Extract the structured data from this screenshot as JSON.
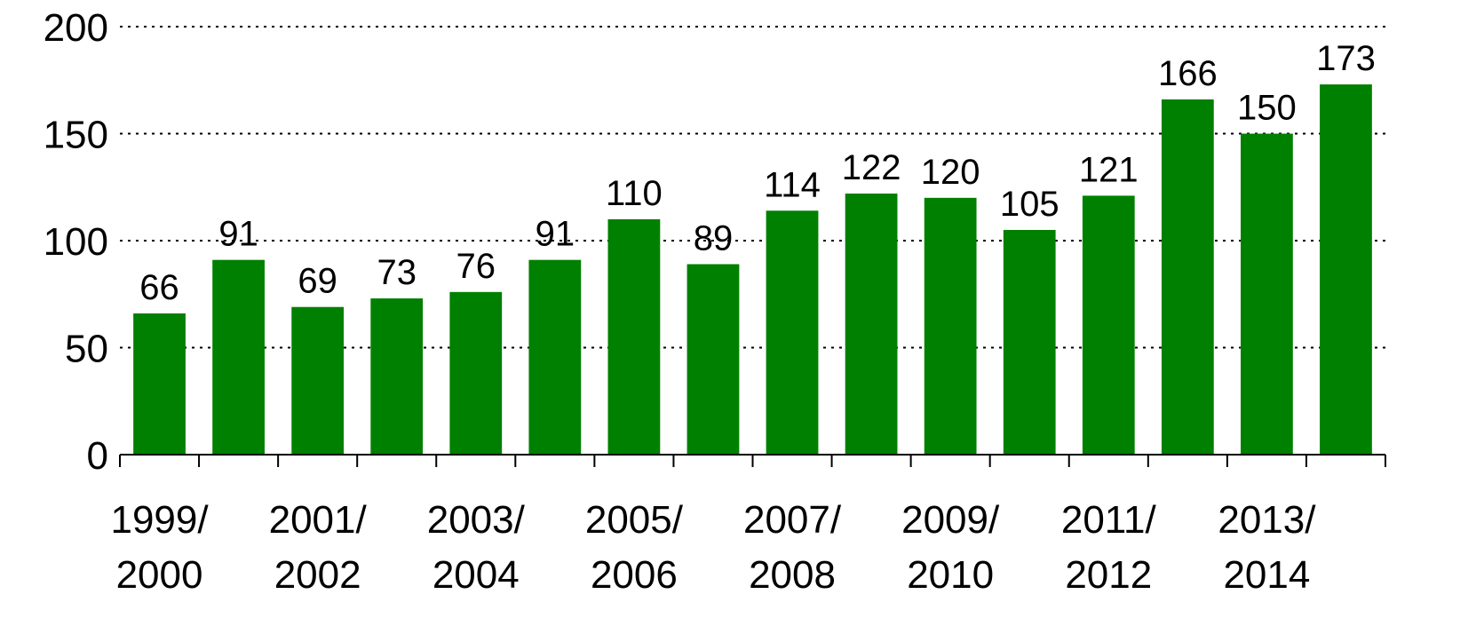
{
  "chart_data": {
    "type": "bar",
    "categories": [
      "1999/\n2000",
      null,
      "2001/\n2002",
      null,
      "2003/\n2004",
      null,
      "2005/\n2006",
      null,
      "2007/\n2008",
      null,
      "2009/\n2010",
      null,
      "2011/\n2012",
      null,
      "2013/\n2014",
      null
    ],
    "values": [
      66,
      91,
      69,
      73,
      76,
      91,
      110,
      89,
      114,
      122,
      120,
      105,
      121,
      166,
      150,
      173
    ],
    "color": "#008000",
    "ylim": [
      0,
      200
    ],
    "yticks": [
      0,
      50,
      100,
      150,
      200
    ],
    "grid": true
  }
}
